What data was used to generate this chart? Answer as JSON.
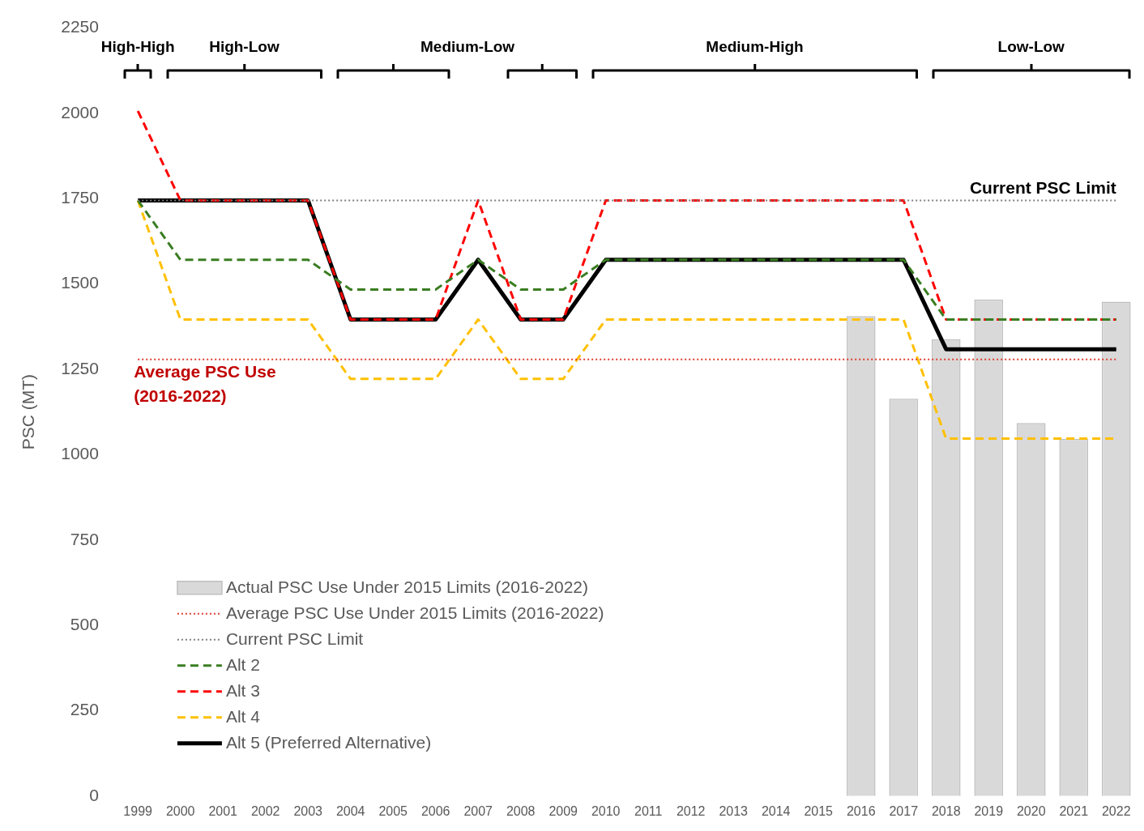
{
  "chart_data": {
    "type": "line",
    "ylabel": "PSC (MT)",
    "categories": [
      "1999",
      "2000",
      "2001",
      "2002",
      "2003",
      "2004",
      "2005",
      "2006",
      "2007",
      "2008",
      "2009",
      "2010",
      "2011",
      "2012",
      "2013",
      "2014",
      "2015",
      "2016",
      "2017",
      "2018",
      "2019",
      "2020",
      "2021",
      "2022"
    ],
    "series": [
      {
        "name": "Actual PSC Use Under 2015 Limits (2016-2022)",
        "type": "bar",
        "color": "#d9d9d9",
        "values": [
          null,
          null,
          null,
          null,
          null,
          null,
          null,
          null,
          null,
          null,
          null,
          null,
          null,
          null,
          null,
          null,
          null,
          1406,
          1164,
          1338,
          1455,
          1093,
          1046,
          1448
        ]
      },
      {
        "name": "Average PSC Use Under 2015 Limits (2016-2022)",
        "line_style": "dotted",
        "color": "#e03c31",
        "values": [
          1279,
          1279,
          1279,
          1279,
          1279,
          1279,
          1279,
          1279,
          1279,
          1279,
          1279,
          1279,
          1279,
          1279,
          1279,
          1279,
          1279,
          1279,
          1279,
          1279,
          1279,
          1279,
          1279,
          1279
        ]
      },
      {
        "name": "Current PSC Limit",
        "line_style": "dotted",
        "color": "#7f7f7f",
        "values": [
          1745,
          1745,
          1745,
          1745,
          1745,
          1745,
          1745,
          1745,
          1745,
          1745,
          1745,
          1745,
          1745,
          1745,
          1745,
          1745,
          1745,
          1745,
          1745,
          1745,
          1745,
          1745,
          1745,
          1745
        ]
      },
      {
        "name": "Alt 2",
        "line_style": "dashed",
        "color": "#3a7d22",
        "values": [
          1745,
          1571,
          1571,
          1571,
          1571,
          1484,
          1484,
          1484,
          1571,
          1484,
          1484,
          1571,
          1571,
          1571,
          1571,
          1571,
          1571,
          1571,
          1571,
          1396,
          1396,
          1396,
          1396,
          1396
        ]
      },
      {
        "name": "Alt 3",
        "line_style": "dashed",
        "color": "#ff0000",
        "values": [
          2007,
          1745,
          1745,
          1745,
          1745,
          1396,
          1396,
          1396,
          1745,
          1396,
          1396,
          1745,
          1745,
          1745,
          1745,
          1745,
          1745,
          1745,
          1745,
          1396,
          1396,
          1396,
          1396,
          1396
        ]
      },
      {
        "name": "Alt 4",
        "line_style": "dashed",
        "color": "#ffc000",
        "values": [
          1745,
          1396,
          1396,
          1396,
          1396,
          1222,
          1222,
          1222,
          1396,
          1222,
          1222,
          1396,
          1396,
          1396,
          1396,
          1396,
          1396,
          1396,
          1396,
          1047,
          1047,
          1047,
          1047,
          1047
        ]
      },
      {
        "name": "Alt 5 (Preferred Alternative)",
        "line_style": "solid",
        "color": "#000000",
        "values": [
          1745,
          1745,
          1745,
          1745,
          1745,
          1396,
          1396,
          1396,
          1571,
          1396,
          1396,
          1571,
          1571,
          1571,
          1571,
          1571,
          1571,
          1571,
          1571,
          1309,
          1309,
          1309,
          1309,
          1309
        ]
      }
    ],
    "ylim": [
      0,
      2250
    ],
    "yticks": [
      0,
      250,
      500,
      750,
      1000,
      1250,
      1500,
      1750,
      2000,
      2250
    ],
    "grid": false,
    "legend": "bottom left",
    "marker": "none",
    "annotations": [
      "High-High",
      "High-Low",
      "Medium-Low",
      "Medium-High",
      "Low-Low",
      {
        "text": "Average PSC Use\n(2016-2022)",
        "x": "1999",
        "y": 1279
      },
      {
        "text": "Current PSC Limit",
        "x": "2022",
        "y": 1745
      }
    ]
  }
}
